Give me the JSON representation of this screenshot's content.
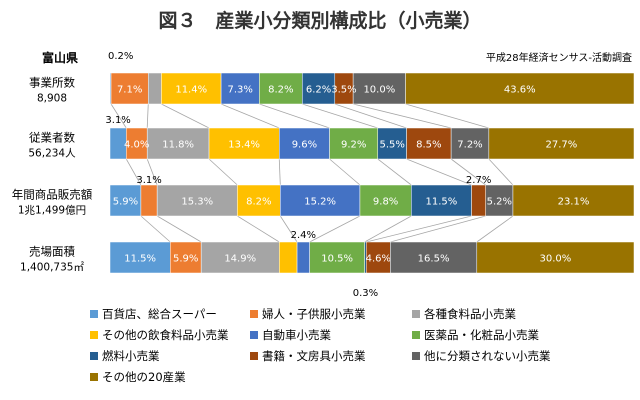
{
  "chart_data": {
    "type": "bar",
    "orientation": "horizontal",
    "stacked": "percent",
    "title": "図３　産業小分類別構成比（小売業）",
    "region_label": "富山県",
    "source_note": "平成28年経済センサス-活動調査",
    "categories": [
      {
        "label": "事業所数",
        "sublabel": "8,908"
      },
      {
        "label": "従業者数",
        "sublabel": "56,234人"
      },
      {
        "label": "年間商品販売額",
        "sublabel": "1兆1,499億円"
      },
      {
        "label": "売場面積",
        "sublabel": "1,400,735㎡"
      }
    ],
    "series": [
      {
        "name": "百貨店、総合スーパー",
        "color": "#5b9bd5",
        "values": [
          0.2,
          3.1,
          5.9,
          11.5
        ]
      },
      {
        "name": "婦人・子供服小売業",
        "color": "#ed7d31",
        "values": [
          7.1,
          4.0,
          3.1,
          5.9
        ]
      },
      {
        "name": "各種食料品小売業",
        "color": "#a5a5a5",
        "values": [
          2.5,
          11.8,
          15.3,
          14.9
        ]
      },
      {
        "name": "その他の飲食料品小売業",
        "color": "#ffc000",
        "values": [
          11.4,
          13.4,
          8.2,
          3.4
        ]
      },
      {
        "name": "自動車小売業",
        "color": "#4472c4",
        "values": [
          7.3,
          9.6,
          15.2,
          2.4
        ]
      },
      {
        "name": "医薬品・化粧品小売業",
        "color": "#70ad47",
        "values": [
          8.2,
          9.2,
          9.8,
          10.5
        ]
      },
      {
        "name": "燃料小売業",
        "color": "#255e91",
        "values": [
          6.2,
          5.5,
          11.5,
          0.3
        ]
      },
      {
        "name": "書籍・文房具小売業",
        "color": "#9e480e",
        "values": [
          3.5,
          8.5,
          2.7,
          4.6
        ]
      },
      {
        "name": "他に分類されない小売業",
        "color": "#636363",
        "values": [
          10.0,
          7.2,
          5.2,
          16.5
        ]
      },
      {
        "name": "その他の20産業",
        "color": "#997300",
        "values": [
          43.6,
          27.7,
          23.1,
          30.0
        ]
      }
    ],
    "unit": "%",
    "xlim": [
      0,
      100
    ]
  }
}
